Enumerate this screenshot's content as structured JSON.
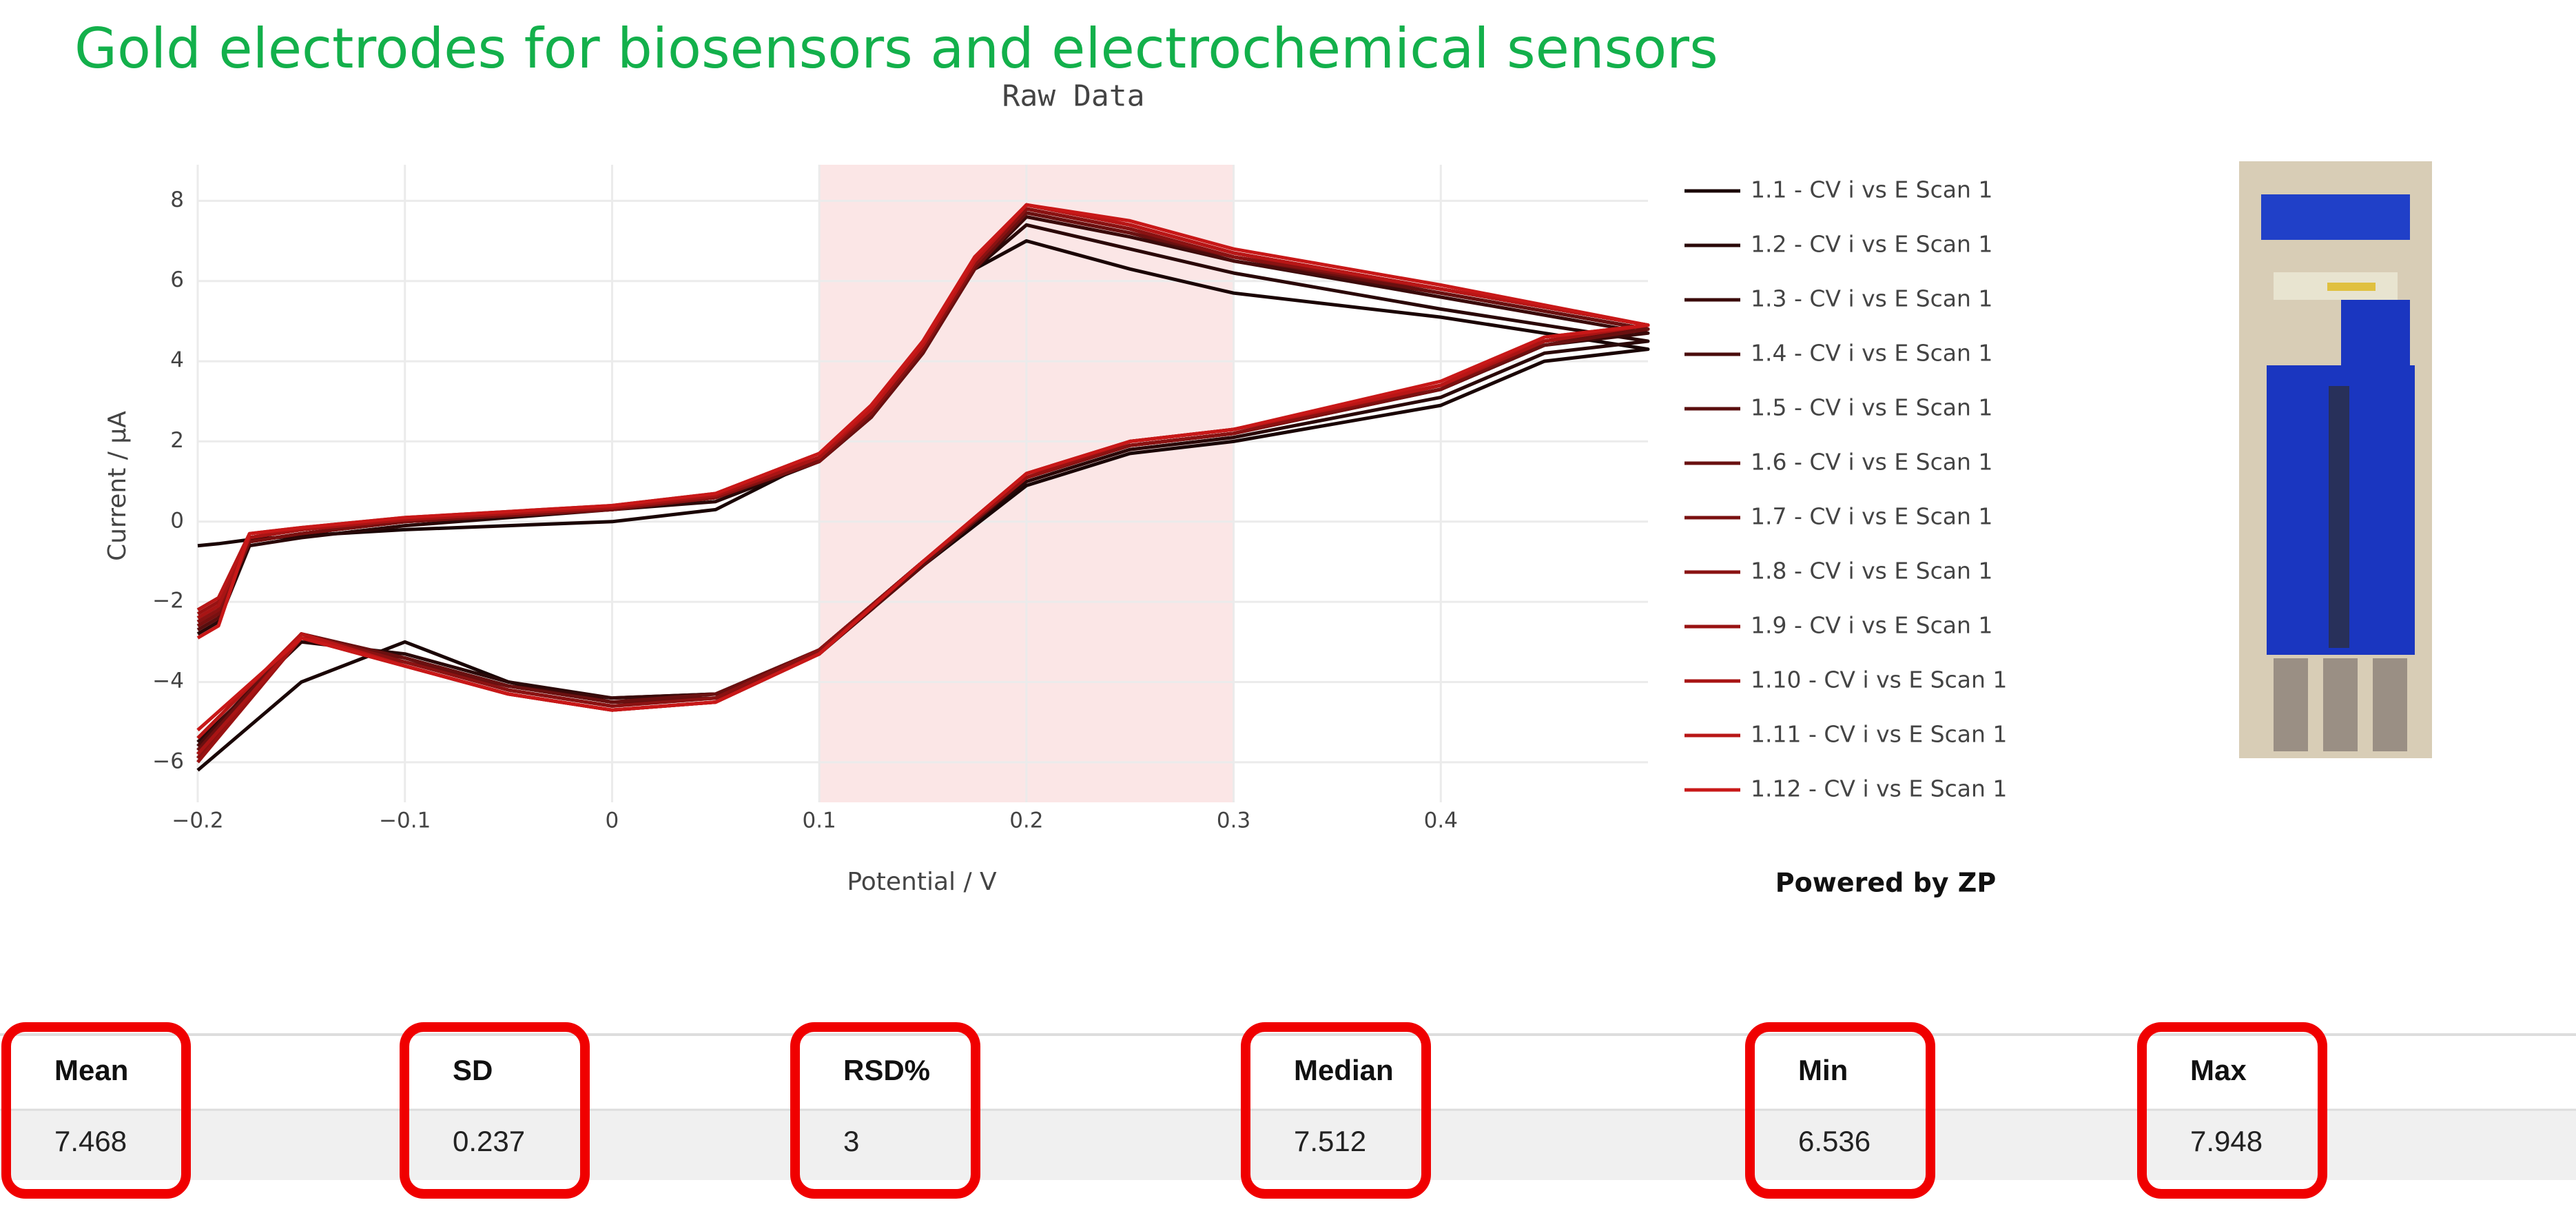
{
  "title": "Gold electrodes for biosensors and electrochemical sensors",
  "chart_data": {
    "type": "line",
    "title": "Raw Data",
    "x_label": "Potential / V",
    "y_label": "Current / µA",
    "xlim": [
      -0.2,
      0.5
    ],
    "ylim": [
      -7,
      8.9
    ],
    "xticks": [
      {
        "value": -0.2,
        "label": "−0.2"
      },
      {
        "value": -0.1,
        "label": "−0.1"
      },
      0,
      0.1,
      0.2,
      0.3,
      0.4
    ],
    "yticks": [
      {
        "value": -6,
        "label": "−6"
      },
      {
        "value": -4,
        "label": "−4"
      },
      {
        "value": -2,
        "label": "−2"
      },
      0,
      2,
      4,
      6,
      8
    ],
    "grid": true,
    "highlight": [
      0.1,
      0.3
    ],
    "highlight_color": "#fbe6e6",
    "x": [
      -0.2,
      -0.19,
      -0.175,
      -0.15,
      -0.1,
      -0.05,
      0,
      0.05,
      0.1,
      0.125,
      0.15,
      0.175,
      0.2,
      0.25,
      0.3,
      0.4,
      0.5,
      0.45,
      0.4,
      0.3,
      0.25,
      0.2,
      0.15,
      0.1,
      0.05,
      0,
      -0.05,
      -0.1,
      -0.15,
      -0.2
    ],
    "series": [
      {
        "name": "1.1 - CV i vs E Scan 1",
        "color": "#1a0505",
        "values": [
          -0.6,
          -0.55,
          -0.45,
          -0.35,
          -0.2,
          -0.1,
          0,
          0.3,
          1.6,
          2.7,
          4.3,
          6.3,
          7.0,
          6.3,
          5.7,
          5.1,
          4.3,
          4.0,
          2.9,
          2.0,
          1.7,
          0.9,
          -1.1,
          -3.3,
          -4.4,
          -4.5,
          -4.0,
          -3.0,
          -4.0,
          -6.2
        ]
      },
      {
        "name": "1.2 - CV i vs E Scan 1",
        "color": "#2a0808",
        "values": [
          -2.8,
          -2.5,
          -0.6,
          -0.4,
          -0.1,
          0.1,
          0.3,
          0.5,
          1.5,
          2.6,
          4.2,
          6.3,
          7.4,
          6.8,
          6.2,
          5.3,
          4.5,
          4.2,
          3.1,
          2.1,
          1.8,
          1.0,
          -1.0,
          -3.2,
          -4.3,
          -4.4,
          -4.0,
          -3.3,
          -3.0,
          -5.5
        ]
      },
      {
        "name": "1.3 - CV i vs E Scan 1",
        "color": "#3a0a0a",
        "values": [
          -2.6,
          -2.3,
          -0.5,
          -0.3,
          0,
          0.15,
          0.3,
          0.6,
          1.5,
          2.6,
          4.2,
          6.3,
          7.6,
          7.1,
          6.5,
          5.6,
          4.7,
          4.4,
          3.3,
          2.2,
          1.9,
          1.1,
          -1.0,
          -3.2,
          -4.3,
          -4.4,
          -4.1,
          -3.4,
          -2.9,
          -5.8
        ]
      },
      {
        "name": "1.4 - CV i vs E Scan 1",
        "color": "#4a0c0c",
        "values": [
          -2.5,
          -2.2,
          -0.5,
          -0.3,
          0,
          0.15,
          0.3,
          0.6,
          1.6,
          2.7,
          4.3,
          6.4,
          7.7,
          7.2,
          6.5,
          5.7,
          4.8,
          4.4,
          3.3,
          2.2,
          1.9,
          1.1,
          -1.0,
          -3.2,
          -4.4,
          -4.5,
          -4.1,
          -3.4,
          -2.8,
          -5.6
        ]
      },
      {
        "name": "1.5 - CV i vs E Scan 1",
        "color": "#5a0e0e",
        "values": [
          -2.7,
          -2.4,
          -0.4,
          -0.2,
          0.05,
          0.2,
          0.35,
          0.65,
          1.6,
          2.7,
          4.3,
          6.4,
          7.8,
          7.3,
          6.6,
          5.7,
          4.8,
          4.5,
          3.4,
          2.2,
          1.9,
          1.1,
          -1.1,
          -3.3,
          -4.4,
          -4.5,
          -4.1,
          -3.5,
          -2.9,
          -5.9
        ]
      },
      {
        "name": "1.6 - CV i vs E Scan 1",
        "color": "#6a1010",
        "values": [
          -2.4,
          -2.1,
          -0.5,
          -0.3,
          0,
          0.15,
          0.3,
          0.6,
          1.5,
          2.6,
          4.2,
          6.3,
          7.7,
          7.2,
          6.6,
          5.7,
          4.8,
          4.4,
          3.3,
          2.2,
          1.9,
          1.1,
          -1.0,
          -3.2,
          -4.3,
          -4.5,
          -4.1,
          -3.4,
          -2.8,
          -5.7
        ]
      },
      {
        "name": "1.7 - CV i vs E Scan 1",
        "color": "#7a1010",
        "values": [
          -2.6,
          -2.3,
          -0.5,
          -0.3,
          0,
          0.15,
          0.3,
          0.6,
          1.5,
          2.7,
          4.3,
          6.4,
          7.8,
          7.3,
          6.6,
          5.8,
          4.9,
          4.5,
          3.3,
          2.2,
          1.9,
          1.1,
          -1.0,
          -3.2,
          -4.4,
          -4.6,
          -4.2,
          -3.5,
          -2.9,
          -5.8
        ]
      },
      {
        "name": "1.8 - CV i vs E Scan 1",
        "color": "#8a1212",
        "values": [
          -2.5,
          -2.2,
          -0.4,
          -0.2,
          0.05,
          0.2,
          0.35,
          0.6,
          1.6,
          2.7,
          4.3,
          6.4,
          7.8,
          7.3,
          6.6,
          5.8,
          4.9,
          4.5,
          3.4,
          2.2,
          1.9,
          1.1,
          -1.0,
          -3.2,
          -4.4,
          -4.6,
          -4.2,
          -3.5,
          -2.8,
          -5.9
        ]
      },
      {
        "name": "1.9 - CV i vs E Scan 1",
        "color": "#981212",
        "values": [
          -2.3,
          -2.0,
          -0.4,
          -0.2,
          0.05,
          0.2,
          0.35,
          0.65,
          1.6,
          2.8,
          4.4,
          6.5,
          7.9,
          7.4,
          6.7,
          5.8,
          4.9,
          4.5,
          3.4,
          2.3,
          2.0,
          1.1,
          -1.0,
          -3.3,
          -4.5,
          -4.7,
          -4.3,
          -3.6,
          -2.9,
          -6.0
        ]
      },
      {
        "name": "1.10 - CV i vs E Scan 1",
        "color": "#a81414",
        "values": [
          -2.4,
          -2.1,
          -0.4,
          -0.2,
          0.05,
          0.2,
          0.35,
          0.65,
          1.6,
          2.8,
          4.4,
          6.5,
          7.9,
          7.4,
          6.7,
          5.8,
          4.9,
          4.5,
          3.4,
          2.3,
          2.0,
          1.2,
          -1.0,
          -3.3,
          -4.5,
          -4.7,
          -4.3,
          -3.6,
          -2.9,
          -5.8
        ]
      },
      {
        "name": "1.11 - CV i vs E Scan 1",
        "color": "#b81616",
        "values": [
          -2.2,
          -1.9,
          -0.3,
          -0.15,
          0.1,
          0.25,
          0.4,
          0.7,
          1.7,
          2.8,
          4.4,
          6.5,
          7.9,
          7.4,
          6.7,
          5.8,
          4.9,
          4.6,
          3.4,
          2.3,
          2.0,
          1.2,
          -1.0,
          -3.3,
          -4.5,
          -4.7,
          -4.3,
          -3.6,
          -2.8,
          -5.4
        ]
      },
      {
        "name": "1.12 - CV i vs E Scan 1",
        "color": "#c81818",
        "values": [
          -2.9,
          -2.6,
          -0.3,
          -0.15,
          0.1,
          0.25,
          0.4,
          0.7,
          1.7,
          2.9,
          4.5,
          6.6,
          7.9,
          7.5,
          6.8,
          5.9,
          4.9,
          4.6,
          3.5,
          2.3,
          2.0,
          1.2,
          -1.0,
          -3.3,
          -4.5,
          -4.7,
          -4.3,
          -3.6,
          -2.9,
          -5.2
        ]
      }
    ]
  },
  "footer": "Powered by ZP",
  "table": {
    "headers": [
      "Mean",
      "SD",
      "RSD%",
      "Median",
      "Min",
      "Max"
    ],
    "rows": [
      [
        7.468,
        0.237,
        3,
        7.512,
        6.536,
        7.948
      ]
    ]
  }
}
